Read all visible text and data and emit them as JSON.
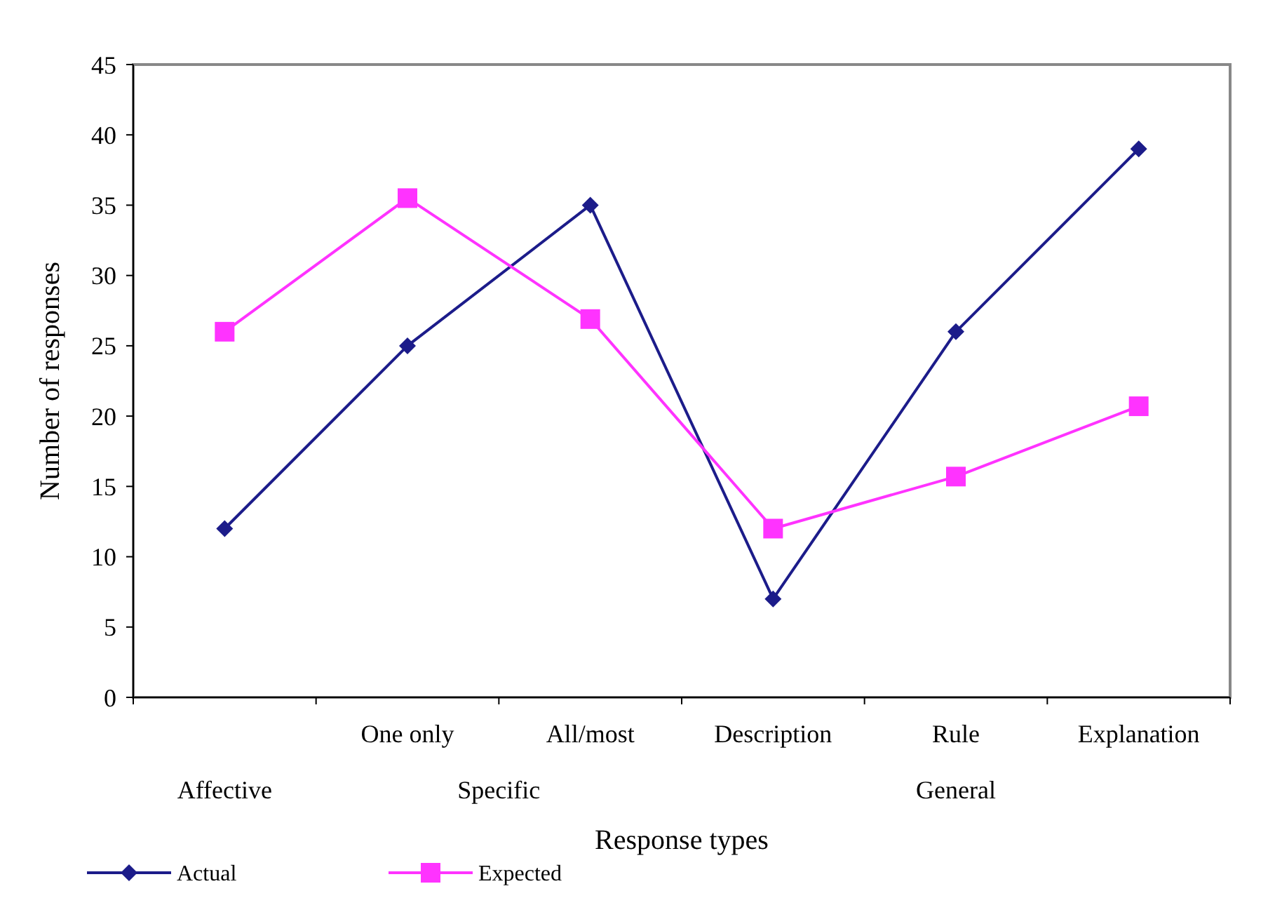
{
  "chart_data": {
    "type": "line",
    "xlabel": "Response types",
    "ylabel": "Number of responses",
    "categories": [
      null,
      "One only",
      "All/most",
      "Description",
      "Rule",
      "Explanation"
    ],
    "series": [
      {
        "name": "Actual",
        "color": "#1c1c8a",
        "marker": "diamond",
        "values": [
          12,
          25,
          35,
          7,
          26,
          39
        ]
      },
      {
        "name": "Expected",
        "color": "#ff33ff",
        "marker": "square",
        "values": [
          26,
          35.5,
          26.9,
          12,
          15.7,
          20.7
        ]
      }
    ],
    "annotations": [
      "Affective",
      "Specific",
      "General"
    ],
    "ylim": [
      0,
      45
    ],
    "yticks": [
      0,
      5,
      10,
      15,
      20,
      25,
      30,
      35,
      40,
      45
    ],
    "grid": false,
    "legend": "bottom"
  }
}
